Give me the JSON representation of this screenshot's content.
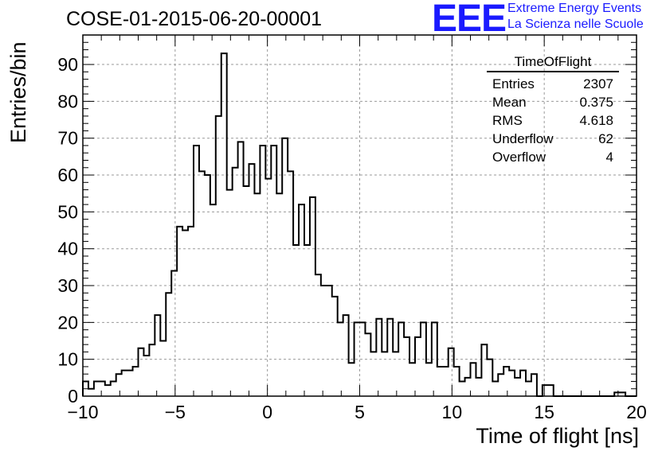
{
  "chart_data": {
    "type": "bar",
    "title": "COSE-01-2015-06-20-00001",
    "xlabel": "Time of flight [ns]",
    "ylabel": "Entries/bin",
    "xlim": [
      -10,
      20
    ],
    "ylim": [
      0,
      98
    ],
    "bin_width": 0.3,
    "grid": true,
    "x_ticks": [
      -10,
      -5,
      0,
      5,
      10,
      15,
      20
    ],
    "x_tick_labels": [
      "−10",
      "−5",
      "0",
      "5",
      "10",
      "15",
      "20"
    ],
    "y_ticks": [
      0,
      10,
      20,
      30,
      40,
      50,
      60,
      70,
      80,
      90
    ],
    "y_tick_labels": [
      "0",
      "10",
      "20",
      "30",
      "40",
      "50",
      "60",
      "70",
      "80",
      "90"
    ],
    "series": [
      {
        "values": [
          4,
          2,
          4,
          4,
          3,
          4,
          6,
          7,
          7,
          8,
          13,
          11,
          14,
          22,
          15,
          28,
          34,
          46,
          45,
          46,
          68,
          61,
          60,
          52,
          76,
          93,
          56,
          62,
          69,
          57,
          63,
          55,
          68,
          59,
          68,
          55,
          70,
          61,
          41,
          52,
          41,
          54,
          33,
          30,
          30,
          27,
          20,
          22,
          9,
          20,
          20,
          17,
          12,
          21,
          12,
          21,
          12,
          20,
          16,
          9,
          16,
          20,
          9,
          20,
          8,
          8,
          13,
          8,
          4,
          5,
          9,
          5,
          14,
          10,
          4,
          6,
          8,
          7,
          5,
          7,
          4,
          6,
          0,
          3,
          3,
          0,
          0,
          0,
          0,
          0,
          0,
          0,
          0,
          0,
          0,
          0,
          1,
          1,
          0,
          0
        ]
      }
    ]
  },
  "logo": {
    "mark": "EEE",
    "line1": "Extreme Energy Events",
    "line2": "La Scienza nelle Scuole"
  },
  "stats": {
    "title": "TimeOfFlight",
    "rows": [
      {
        "label": "Entries",
        "value": "2307"
      },
      {
        "label": "Mean",
        "value": "0.375"
      },
      {
        "label": "RMS",
        "value": "4.618"
      },
      {
        "label": "Underflow",
        "value": "62"
      },
      {
        "label": "Overflow",
        "value": "4"
      }
    ]
  }
}
